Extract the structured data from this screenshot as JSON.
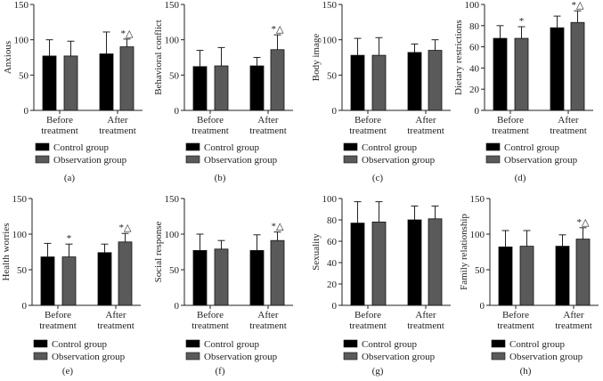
{
  "chart_data": {
    "type": "bar",
    "legend": [
      "Control group",
      "Observation group"
    ],
    "colors": {
      "control": "#000000",
      "observation": "#5a5a5a"
    },
    "categories": [
      "Before\ntreatment",
      "After\ntreatment"
    ],
    "panels": [
      {
        "label": "(a)",
        "ylabel": "Anxious",
        "ylim": [
          0,
          150
        ],
        "ticks": [
          0,
          50,
          100,
          150
        ],
        "series": [
          {
            "name": "Control group",
            "values": [
              77,
              80
            ],
            "errors": [
              23,
              31
            ],
            "marks": [
              "",
              ""
            ]
          },
          {
            "name": "Observation group",
            "values": [
              77,
              90
            ],
            "errors": [
              21,
              11
            ],
            "marks": [
              "",
              "*△"
            ]
          }
        ]
      },
      {
        "label": "(b)",
        "ylabel": "Behavioral conflict",
        "ylim": [
          0,
          150
        ],
        "ticks": [
          0,
          50,
          100,
          150
        ],
        "series": [
          {
            "name": "Control group",
            "values": [
              62,
              63
            ],
            "errors": [
              23,
              12
            ],
            "marks": [
              "",
              ""
            ]
          },
          {
            "name": "Observation group",
            "values": [
              63,
              86
            ],
            "errors": [
              26,
              21
            ],
            "marks": [
              "",
              "*△"
            ]
          }
        ]
      },
      {
        "label": "(c)",
        "ylabel": "Body image",
        "ylim": [
          0,
          150
        ],
        "ticks": [
          0,
          50,
          100,
          150
        ],
        "series": [
          {
            "name": "Control group",
            "values": [
              78,
              82
            ],
            "errors": [
              24,
              12
            ],
            "marks": [
              "",
              ""
            ]
          },
          {
            "name": "Observation group",
            "values": [
              78,
              85
            ],
            "errors": [
              25,
              15
            ],
            "marks": [
              "",
              ""
            ]
          }
        ]
      },
      {
        "label": "(d)",
        "ylabel": "Dietary restrictions",
        "ylim": [
          0,
          100
        ],
        "ticks": [
          0,
          20,
          40,
          60,
          80,
          100
        ],
        "series": [
          {
            "name": "Control group",
            "values": [
              68,
              78
            ],
            "errors": [
              12,
              11
            ],
            "marks": [
              "",
              ""
            ]
          },
          {
            "name": "Observation group",
            "values": [
              68,
              83
            ],
            "errors": [
              11,
              11
            ],
            "marks": [
              "*",
              "*△"
            ]
          }
        ]
      },
      {
        "label": "(e)",
        "ylabel": "Health worries",
        "ylim": [
          0,
          150
        ],
        "ticks": [
          0,
          50,
          100,
          150
        ],
        "series": [
          {
            "name": "Control group",
            "values": [
              68,
              74
            ],
            "errors": [
              19,
              12
            ],
            "marks": [
              "",
              ""
            ]
          },
          {
            "name": "Observation group",
            "values": [
              68,
              89
            ],
            "errors": [
              18,
              12
            ],
            "marks": [
              "*",
              "*△"
            ]
          }
        ]
      },
      {
        "label": "(f)",
        "ylabel": "Social response",
        "ylim": [
          0,
          150
        ],
        "ticks": [
          0,
          50,
          100,
          150
        ],
        "series": [
          {
            "name": "Control group",
            "values": [
              77,
              77
            ],
            "errors": [
              23,
              22
            ],
            "marks": [
              "",
              ""
            ]
          },
          {
            "name": "Observation group",
            "values": [
              79,
              91
            ],
            "errors": [
              12,
              12
            ],
            "marks": [
              "",
              "*△"
            ]
          }
        ]
      },
      {
        "label": "(g)",
        "ylabel": "Sexuality",
        "ylim": [
          0,
          100
        ],
        "ticks": [
          0,
          20,
          40,
          60,
          80,
          100
        ],
        "series": [
          {
            "name": "Control group",
            "values": [
              77,
              80
            ],
            "errors": [
              20,
              13
            ],
            "marks": [
              "",
              ""
            ]
          },
          {
            "name": "Observation group",
            "values": [
              78,
              81
            ],
            "errors": [
              19,
              12
            ],
            "marks": [
              "",
              ""
            ]
          }
        ]
      },
      {
        "label": "(h)",
        "ylabel": "Family relationship",
        "ylim": [
          0,
          150
        ],
        "ticks": [
          0,
          50,
          100,
          150
        ],
        "series": [
          {
            "name": "Control group",
            "values": [
              82,
              83
            ],
            "errors": [
              23,
              16
            ],
            "marks": [
              "",
              ""
            ]
          },
          {
            "name": "Observation group",
            "values": [
              83,
              93
            ],
            "errors": [
              22,
              16
            ],
            "marks": [
              "",
              "*△"
            ]
          }
        ]
      }
    ]
  }
}
